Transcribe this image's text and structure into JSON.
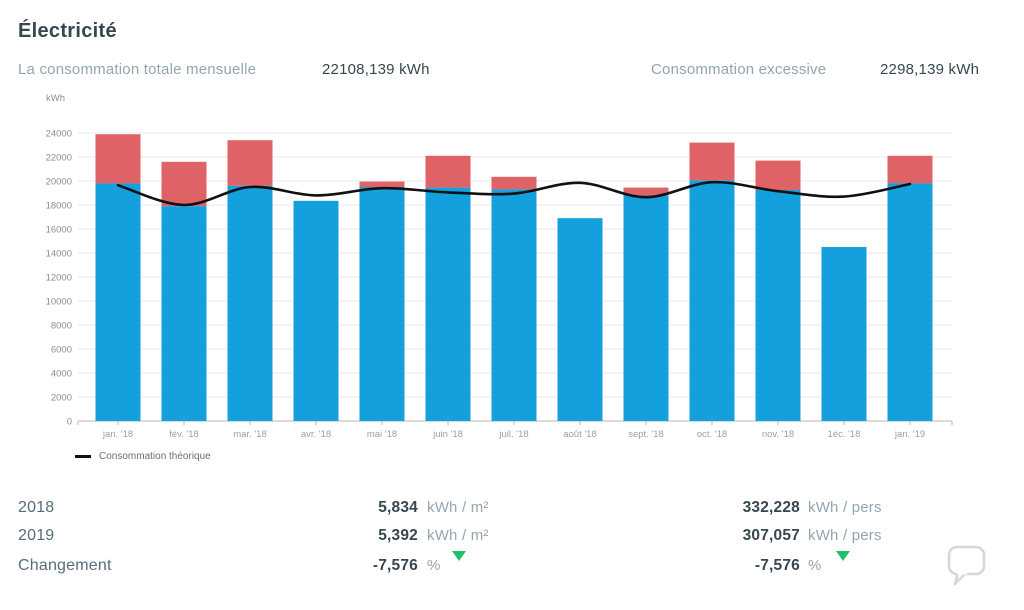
{
  "page": {
    "title": "Électricité"
  },
  "header": {
    "total_label": "La consommation totale mensuelle",
    "total_value": "22108,139 kWh",
    "excessive_label": "Consommation excessive",
    "excessive_value": "2298,139 kWh"
  },
  "chart_data": {
    "type": "bar",
    "title": "",
    "xlabel": "",
    "ylabel": "kWh",
    "ylim": [
      0,
      24000
    ],
    "ytick_step": 2000,
    "yticks": [
      0,
      2000,
      4000,
      6000,
      8000,
      10000,
      12000,
      14000,
      16000,
      18000,
      20000,
      22000,
      24000
    ],
    "grid": true,
    "legend_position": "bottom-left",
    "categories": [
      "jan. '18",
      "fév. '18",
      "mar. '18",
      "avr. '18",
      "mai '18",
      "juin '18",
      "juil. '18",
      "août '18",
      "sept. '18",
      "oct. '18",
      "nov. '18",
      "1éc. '18",
      "jan. '19"
    ],
    "series": [
      {
        "name": "Consommation",
        "type": "bar",
        "color": "#149fdd",
        "values": [
          19800,
          17900,
          19600,
          18350,
          19500,
          19450,
          19300,
          16900,
          18800,
          20050,
          19250,
          14500,
          19800
        ]
      },
      {
        "name": "Consommation excessive",
        "type": "bar-stacked-top",
        "color": "#df6266",
        "values": [
          4100,
          3700,
          3800,
          0,
          450,
          2650,
          1050,
          0,
          650,
          3150,
          2450,
          0,
          2300
        ]
      },
      {
        "name": "Consommation théorique",
        "type": "line",
        "color": "#111111",
        "values": [
          19650,
          18000,
          19500,
          18800,
          19400,
          19050,
          18950,
          19850,
          18650,
          19900,
          19150,
          18700,
          19750
        ]
      }
    ],
    "stacked_totals": [
      23900,
      21600,
      23400,
      18350,
      19950,
      22100,
      20350,
      16900,
      19450,
      23200,
      21700,
      14500,
      22100
    ]
  },
  "legend": {
    "theoretical_label": "Consommation théorique"
  },
  "stats": {
    "trend_color": "#1fc06d",
    "rows": [
      {
        "label": "2018",
        "per_m2": "5,834",
        "per_m2_unit": "kWh / m²",
        "per_pers": "332,228",
        "per_pers_unit": "kWh / pers"
      },
      {
        "label": "2019",
        "per_m2": "5,392",
        "per_m2_unit": "kWh / m²",
        "per_pers": "307,057",
        "per_pers_unit": "kWh / pers"
      },
      {
        "label": "Changement",
        "per_m2": "-7,576",
        "per_m2_unit": "%",
        "per_pers": "-7,576",
        "per_pers_unit": "%",
        "trend": "down"
      }
    ]
  },
  "icons": {
    "comment": "speech-bubble"
  }
}
